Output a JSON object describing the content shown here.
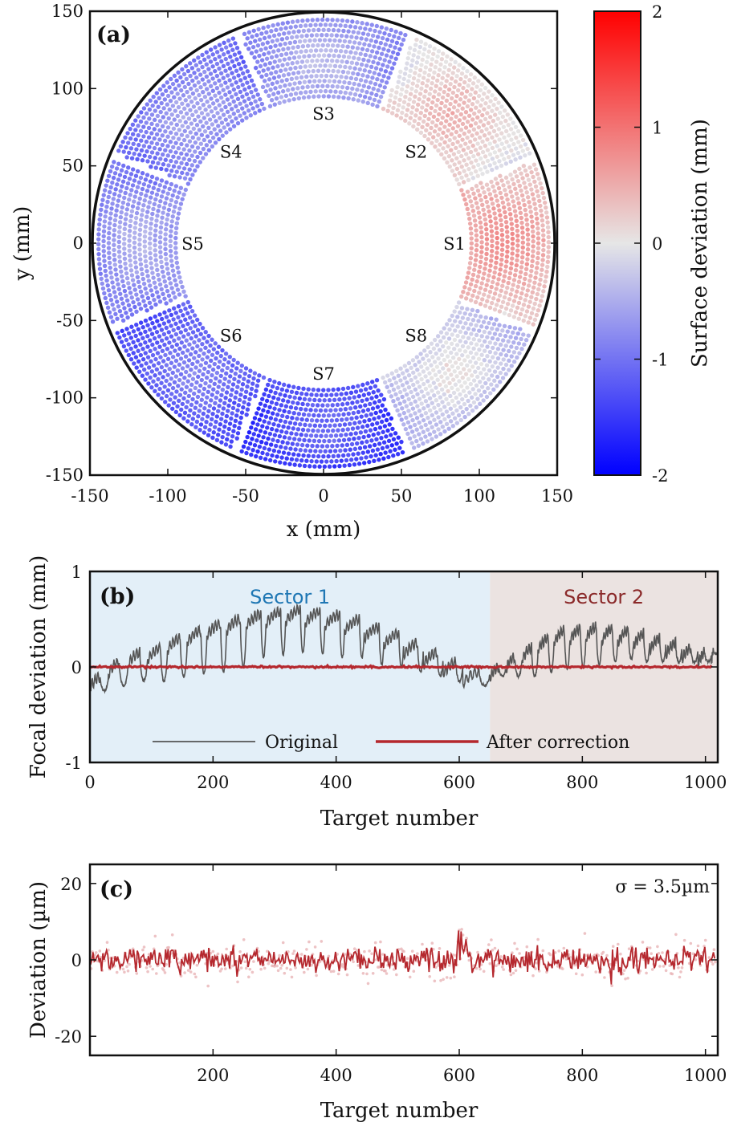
{
  "chart_data": [
    {
      "panel": "(a)",
      "type": "scatter",
      "xlabel": "x (mm)",
      "ylabel": "y (mm)",
      "xlim": [
        -150,
        150
      ],
      "ylim": [
        -150,
        150
      ],
      "xticks": [
        "-150",
        "-100",
        "-50",
        "0",
        "50",
        "100",
        "150"
      ],
      "yticks": [
        "-150",
        "-100",
        "-50",
        "0",
        "50",
        "100",
        "150"
      ],
      "ring": {
        "inner_radius": 95,
        "outer_radius": 145,
        "boundary_radius": 148
      },
      "sectors": [
        {
          "label": "S1",
          "center_angle_deg": 0,
          "mean_deviation": 0.5
        },
        {
          "label": "S2",
          "center_angle_deg": 45,
          "mean_deviation": 0.2
        },
        {
          "label": "S3",
          "center_angle_deg": 90,
          "mean_deviation": -0.6
        },
        {
          "label": "S4",
          "center_angle_deg": 135,
          "mean_deviation": -0.8
        },
        {
          "label": "S5",
          "center_angle_deg": 180,
          "mean_deviation": -0.7
        },
        {
          "label": "S6",
          "center_angle_deg": 225,
          "mean_deviation": -1.1
        },
        {
          "label": "S7",
          "center_angle_deg": 270,
          "mean_deviation": -1.3
        },
        {
          "label": "S8",
          "center_angle_deg": 315,
          "mean_deviation": -0.2
        }
      ],
      "colorbar": {
        "label": "Surface deviation (mm)",
        "range": [
          -2,
          2
        ],
        "ticks": [
          "-2",
          "-1",
          "0",
          "1",
          "2"
        ],
        "colors": {
          "low": "#0000ff",
          "mid": "#e6e6e6",
          "high": "#ff0000"
        }
      }
    },
    {
      "panel": "(b)",
      "type": "line",
      "xlabel": "Target number",
      "ylabel": "Focal deviation (mm)",
      "xlim": [
        0,
        1020
      ],
      "ylim": [
        -1,
        1
      ],
      "xticks": [
        "0",
        "200",
        "400",
        "600",
        "800",
        "1000"
      ],
      "yticks": [
        "-1",
        "0",
        "1"
      ],
      "regions": [
        {
          "label": "Sector 1",
          "from": 0,
          "to": 650,
          "fill": "#e3eff8",
          "text_color": "#1f77b4"
        },
        {
          "label": "Sector 2",
          "from": 650,
          "to": 1020,
          "fill": "#ebe3e1",
          "text_color": "#8b2a2a"
        }
      ],
      "series": [
        {
          "name": "Original",
          "color": "#555555",
          "segments": [
            [
              0,
              -0.1,
              0.15,
              0.55
            ],
            [
              30,
              0.05,
              0.25,
              0.55
            ],
            [
              62,
              0.15,
              0.3,
              0.6
            ],
            [
              94,
              0.2,
              0.35,
              0.65
            ],
            [
              126,
              0.3,
              0.4,
              0.65
            ],
            [
              158,
              0.38,
              0.45,
              0.7
            ],
            [
              190,
              0.45,
              0.5,
              0.7
            ],
            [
              222,
              0.5,
              0.5,
              0.7
            ],
            [
              254,
              0.55,
              0.45,
              0.75
            ],
            [
              286,
              0.58,
              0.45,
              0.75
            ],
            [
              318,
              0.6,
              0.45,
              0.75
            ],
            [
              350,
              0.58,
              0.45,
              0.75
            ],
            [
              382,
              0.55,
              0.45,
              0.75
            ],
            [
              414,
              0.5,
              0.4,
              0.75
            ],
            [
              446,
              0.42,
              0.4,
              0.75
            ],
            [
              478,
              0.35,
              0.35,
              0.75
            ],
            [
              510,
              0.25,
              0.3,
              0.7
            ],
            [
              542,
              0.15,
              0.25,
              0.7
            ],
            [
              574,
              0.05,
              0.2,
              0.65
            ],
            [
              606,
              -0.05,
              0.15,
              0.6
            ],
            [
              650,
              0.0,
              0.1,
              0.55
            ],
            [
              676,
              0.1,
              0.2,
              0.55
            ],
            [
              702,
              0.2,
              0.3,
              0.6
            ],
            [
              728,
              0.3,
              0.35,
              0.65
            ],
            [
              754,
              0.38,
              0.4,
              0.65
            ],
            [
              780,
              0.4,
              0.4,
              0.65
            ],
            [
              806,
              0.42,
              0.4,
              0.65
            ],
            [
              832,
              0.4,
              0.35,
              0.65
            ],
            [
              858,
              0.38,
              0.3,
              0.65
            ],
            [
              884,
              0.35,
              0.3,
              0.6
            ],
            [
              910,
              0.3,
              0.25,
              0.6
            ],
            [
              936,
              0.25,
              0.2,
              0.6
            ],
            [
              962,
              0.2,
              0.15,
              0.55
            ],
            [
              988,
              0.15,
              0.1,
              0.5
            ],
            [
              1010,
              0.18,
              0.05,
              0.3
            ]
          ]
        },
        {
          "name": "After correction",
          "color": "#b5282e",
          "value": 0,
          "noise": 0.01
        }
      ]
    },
    {
      "panel": "(c)",
      "type": "line",
      "xlabel": "Target number",
      "ylabel": "Deviation (µm)",
      "xlim": [
        0,
        1020
      ],
      "ylim": [
        -25,
        25
      ],
      "xticks": [
        "200",
        "400",
        "600",
        "800",
        "1000"
      ],
      "yticks": [
        "-20",
        "0",
        "20"
      ],
      "annotation": "σ = 3.5µm",
      "series": [
        {
          "name": "Deviation",
          "color": "#b5282e",
          "sigma": 3.5
        },
        {
          "name": "Raw points",
          "color": "#e8b4b6"
        }
      ]
    }
  ]
}
